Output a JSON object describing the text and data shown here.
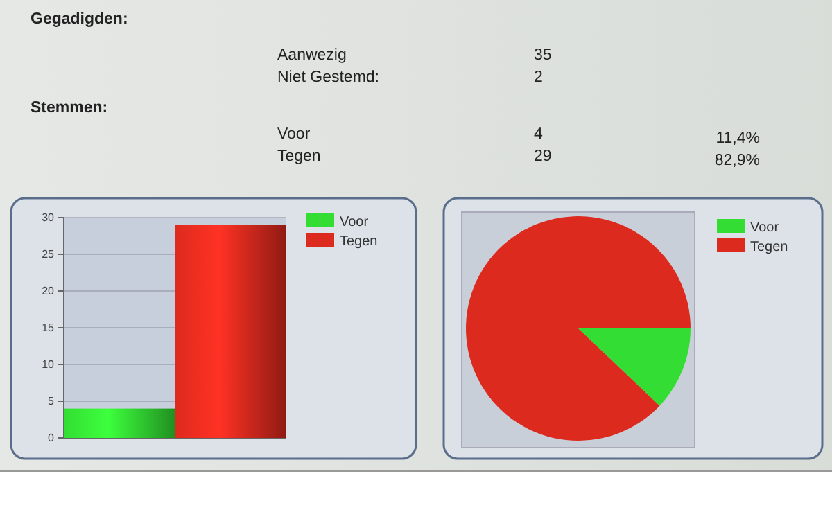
{
  "chart_data": [
    {
      "type": "other",
      "annotations": [
        "Gegadigden:",
        "Aanwezig",
        "35",
        "Niet Gestemd:",
        "2",
        "Stemmen:",
        "Voor",
        "4",
        "11,4%",
        "Tegen",
        "29",
        "82,9%"
      ]
    },
    {
      "type": "bar",
      "categories": [
        null
      ],
      "series": [
        {
          "name": "Voor",
          "color": "#33dd33",
          "values": [
            4
          ]
        },
        {
          "name": "Tegen",
          "color": "#dd2a1e",
          "values": [
            29
          ]
        }
      ],
      "ylim": [
        0,
        30
      ],
      "yticks": [
        0,
        5,
        10,
        15,
        20,
        25,
        30
      ],
      "grid": "y",
      "legend": "top right",
      "tick_labels": "y"
    },
    {
      "type": "pie",
      "categories": [
        "Voor",
        "Tegen"
      ],
      "values": [
        12.1,
        87.9
      ],
      "colors": [
        "#33dd33",
        "#dd2a1e"
      ],
      "legend": "top right"
    }
  ]
}
